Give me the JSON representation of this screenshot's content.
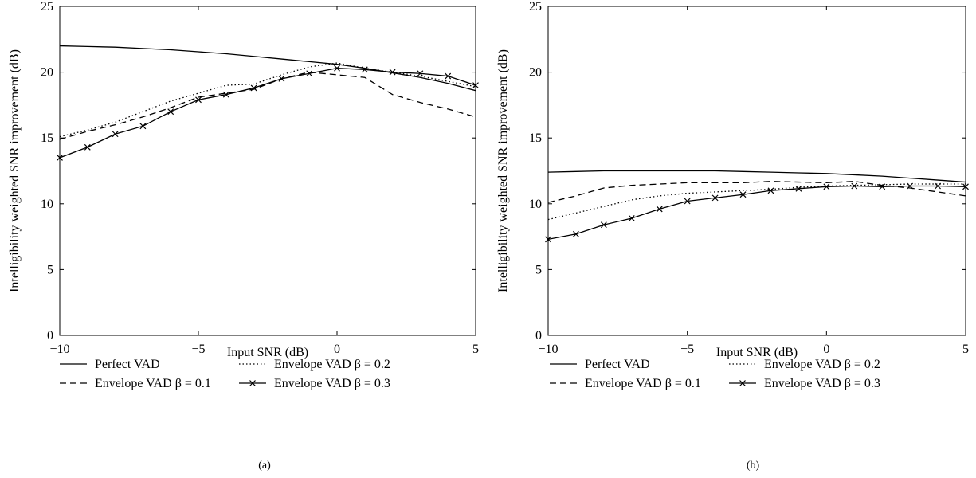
{
  "chart_data": [
    {
      "type": "line",
      "caption": "(a)",
      "xlabel": "Input SNR (dB)",
      "ylabel": "Intelligibility weighted SNR improvement (dB)",
      "xlim": [
        -10,
        5
      ],
      "ylim": [
        0,
        25
      ],
      "x_ticks": [
        -10,
        -5,
        0,
        5
      ],
      "y_ticks": [
        0,
        5,
        10,
        15,
        20,
        25
      ],
      "x_tick_labels": [
        "−10",
        "−5",
        "0",
        "5"
      ],
      "y_tick_labels": [
        "0",
        "5",
        "10",
        "15",
        "20",
        "25"
      ],
      "grid": false,
      "legend_position": "below",
      "series": [
        {
          "name": "Perfect VAD",
          "style": "solid",
          "x": [
            -10,
            -9,
            -8,
            -7,
            -6,
            -5,
            -4,
            -3,
            -2,
            -1,
            0,
            1,
            2,
            3,
            4,
            5
          ],
          "y": [
            22.0,
            21.95,
            21.9,
            21.8,
            21.7,
            21.55,
            21.4,
            21.2,
            21.0,
            20.8,
            20.6,
            20.3,
            19.95,
            19.6,
            19.15,
            18.6
          ]
        },
        {
          "name": "Envelope VAD β = 0.1",
          "style": "dashed",
          "x": [
            -10,
            -9,
            -8,
            -7,
            -6,
            -5,
            -4,
            -3,
            -2,
            -1,
            0,
            1,
            2,
            3,
            4,
            5
          ],
          "y": [
            14.9,
            15.5,
            16.0,
            16.6,
            17.3,
            18.1,
            18.4,
            18.7,
            19.5,
            20.0,
            19.8,
            19.6,
            18.3,
            17.7,
            17.2,
            16.6
          ]
        },
        {
          "name": "Envelope VAD β = 0.2",
          "style": "dotted",
          "x": [
            -10,
            -9,
            -8,
            -7,
            -6,
            -5,
            -4,
            -3,
            -2,
            -1,
            0,
            1,
            2,
            3,
            4,
            5
          ],
          "y": [
            15.1,
            15.6,
            16.2,
            17.0,
            17.8,
            18.4,
            19.0,
            19.1,
            19.8,
            20.4,
            20.7,
            20.3,
            20.0,
            19.7,
            19.3,
            18.9
          ]
        },
        {
          "name": "Envelope VAD β = 0.3",
          "style": "solid-x",
          "x": [
            -10,
            -9,
            -8,
            -7,
            -6,
            -5,
            -4,
            -3,
            -2,
            -1,
            0,
            1,
            2,
            3,
            4,
            5
          ],
          "y": [
            13.5,
            14.3,
            15.3,
            15.9,
            17.0,
            17.9,
            18.3,
            18.8,
            19.5,
            19.9,
            20.3,
            20.2,
            20.0,
            19.9,
            19.7,
            19.0
          ]
        }
      ]
    },
    {
      "type": "line",
      "caption": "(b)",
      "xlabel": "Input SNR (dB)",
      "ylabel": "Intelligibility weighted SNR improvement (dB)",
      "xlim": [
        -10,
        5
      ],
      "ylim": [
        0,
        25
      ],
      "x_ticks": [
        -10,
        -5,
        0,
        5
      ],
      "y_ticks": [
        0,
        5,
        10,
        15,
        20,
        25
      ],
      "x_tick_labels": [
        "−10",
        "−5",
        "0",
        "5"
      ],
      "y_tick_labels": [
        "0",
        "5",
        "10",
        "15",
        "20",
        "25"
      ],
      "grid": false,
      "legend_position": "below",
      "series": [
        {
          "name": "Perfect VAD",
          "style": "solid",
          "x": [
            -10,
            -9,
            -8,
            -7,
            -6,
            -5,
            -4,
            -3,
            -2,
            -1,
            0,
            1,
            2,
            3,
            4,
            5
          ],
          "y": [
            12.4,
            12.45,
            12.5,
            12.5,
            12.5,
            12.5,
            12.5,
            12.45,
            12.4,
            12.35,
            12.3,
            12.2,
            12.1,
            11.95,
            11.8,
            11.65
          ]
        },
        {
          "name": "Envelope VAD β = 0.1",
          "style": "dashed",
          "x": [
            -10,
            -9,
            -8,
            -7,
            -6,
            -5,
            -4,
            -3,
            -2,
            -1,
            0,
            1,
            2,
            3,
            4,
            5
          ],
          "y": [
            10.1,
            10.6,
            11.2,
            11.4,
            11.5,
            11.6,
            11.6,
            11.6,
            11.7,
            11.65,
            11.6,
            11.7,
            11.4,
            11.2,
            10.9,
            10.6
          ]
        },
        {
          "name": "Envelope VAD β = 0.2",
          "style": "dotted",
          "x": [
            -10,
            -9,
            -8,
            -7,
            -6,
            -5,
            -4,
            -3,
            -2,
            -1,
            0,
            1,
            2,
            3,
            4,
            5
          ],
          "y": [
            8.8,
            9.3,
            9.8,
            10.3,
            10.6,
            10.8,
            10.9,
            11.0,
            11.1,
            11.25,
            11.35,
            11.4,
            11.45,
            11.5,
            11.5,
            11.5
          ]
        },
        {
          "name": "Envelope VAD β = 0.3",
          "style": "solid-x",
          "x": [
            -10,
            -9,
            -8,
            -7,
            -6,
            -5,
            -4,
            -3,
            -2,
            -1,
            0,
            1,
            2,
            3,
            4,
            5
          ],
          "y": [
            7.3,
            7.7,
            8.4,
            8.9,
            9.6,
            10.2,
            10.45,
            10.7,
            11.0,
            11.15,
            11.3,
            11.35,
            11.3,
            11.35,
            11.35,
            11.3
          ]
        }
      ]
    }
  ]
}
